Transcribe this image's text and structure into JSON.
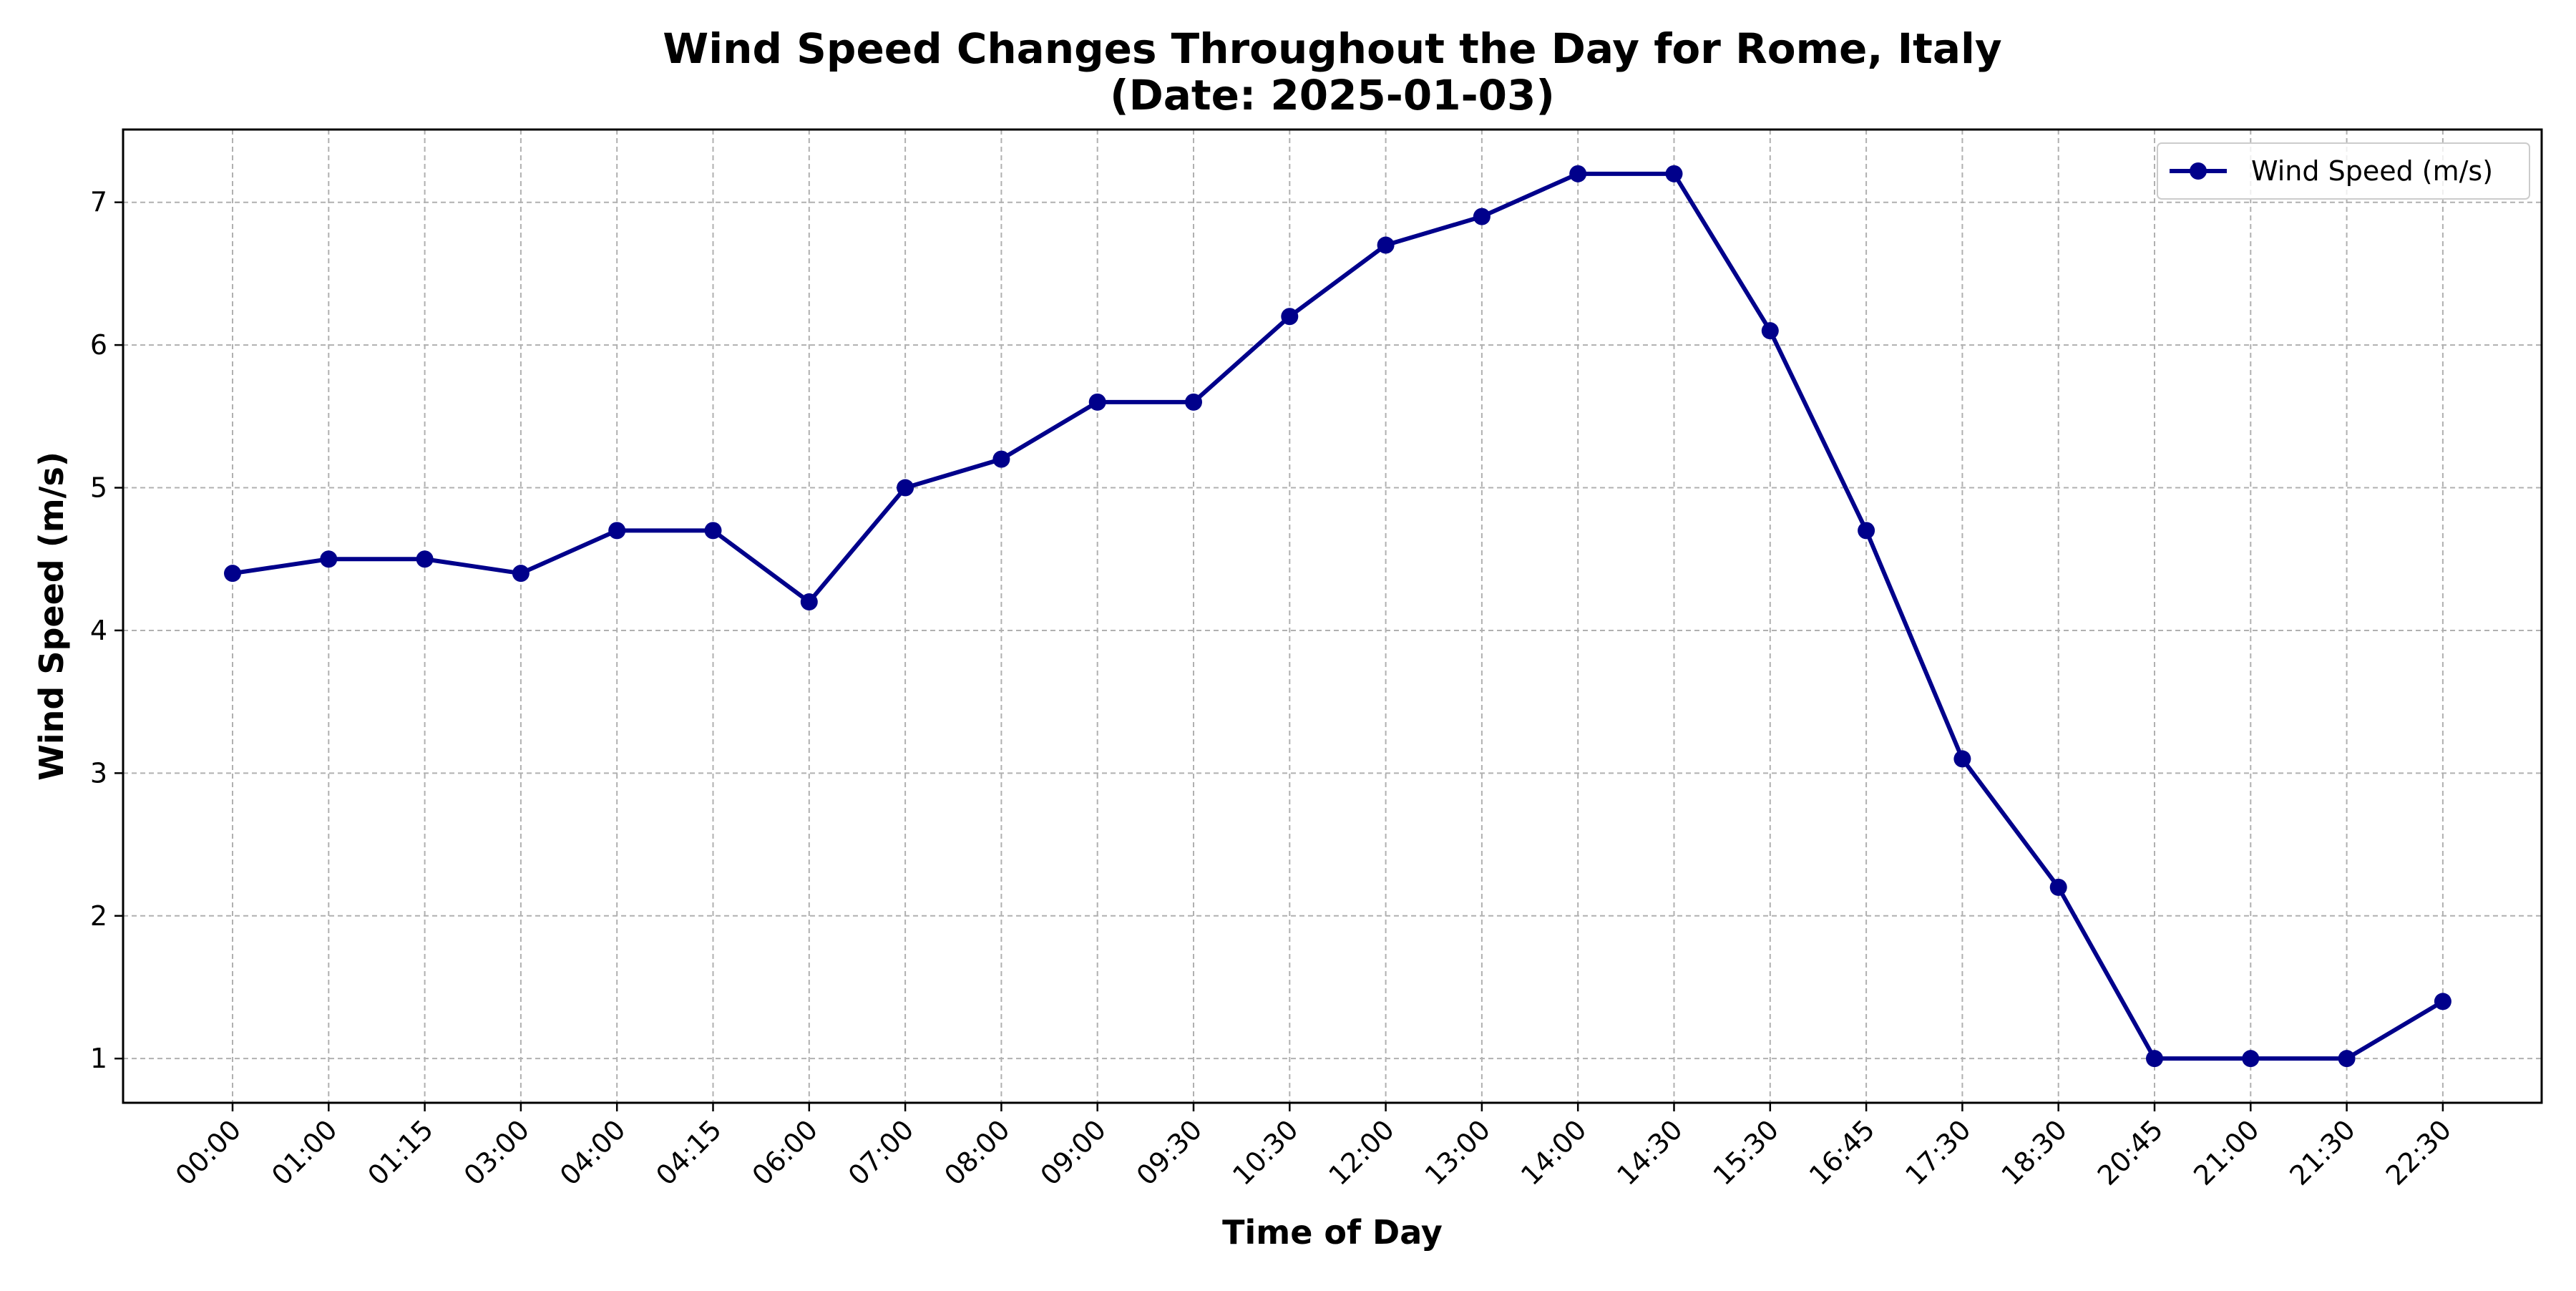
{
  "chart_data": {
    "type": "line",
    "title": "Wind Speed Changes Throughout the Day for Rome, Italy",
    "subtitle": "(Date: 2025-01-03)",
    "xlabel": "Time of Day",
    "ylabel": "Wind Speed (m/s)",
    "categories": [
      "00:00",
      "01:00",
      "01:15",
      "03:00",
      "04:00",
      "04:15",
      "06:00",
      "07:00",
      "08:00",
      "09:00",
      "09:30",
      "10:30",
      "12:00",
      "13:00",
      "14:00",
      "14:30",
      "15:30",
      "16:45",
      "17:30",
      "18:30",
      "20:45",
      "21:00",
      "21:30",
      "22:30"
    ],
    "series": [
      {
        "name": "Wind Speed (m/s)",
        "color": "#00008b",
        "marker": "circle",
        "values": [
          4.4,
          4.5,
          4.5,
          4.4,
          4.7,
          4.7,
          4.2,
          5.0,
          5.2,
          5.6,
          5.6,
          6.2,
          6.7,
          6.9,
          7.2,
          7.2,
          6.1,
          4.7,
          3.1,
          2.2,
          1.0,
          1.0,
          1.0,
          1.4
        ]
      }
    ],
    "yticks": [
      1,
      2,
      3,
      4,
      5,
      6,
      7
    ],
    "ylim": [
      0.69,
      7.51
    ],
    "grid": true,
    "grid_style": "dashed",
    "legend_position": "top-right"
  }
}
